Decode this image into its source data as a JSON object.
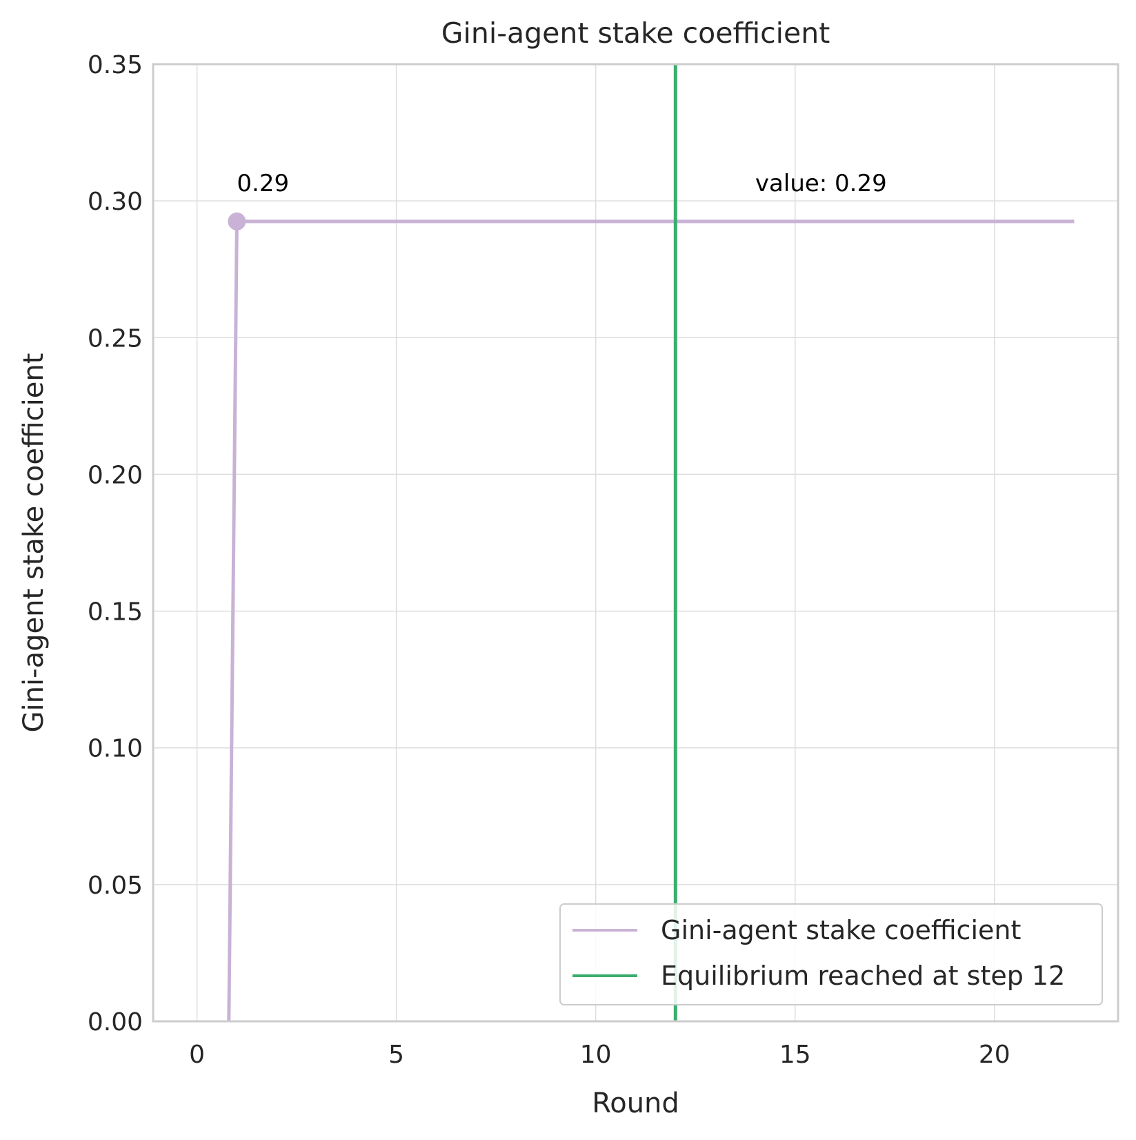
{
  "chart_data": {
    "type": "line",
    "title": "Gini-agent stake coefficient",
    "xlabel": "Round",
    "ylabel": "Gini-agent stake coefficient",
    "xlim": [
      -1.1,
      23.1
    ],
    "ylim": [
      0,
      0.35
    ],
    "xticks": [
      0,
      5,
      10,
      15,
      20
    ],
    "xtick_labels": [
      "0",
      "5",
      "10",
      "15",
      "20"
    ],
    "yticks": [
      0,
      0.05,
      0.1,
      0.15,
      0.2,
      0.25,
      0.3,
      0.35
    ],
    "ytick_labels": [
      "0.00",
      "0.05",
      "0.10",
      "0.15",
      "0.20",
      "0.25",
      "0.30",
      "0.35"
    ],
    "grid": true,
    "legend_position": "lower-right",
    "series": [
      {
        "name": "Gini-agent stake coefficient",
        "color": "#c9b2d6",
        "x": [
          0.8,
          1,
          2,
          3,
          4,
          5,
          6,
          7,
          8,
          9,
          10,
          11,
          12,
          13,
          14,
          15,
          16,
          17,
          18,
          19,
          20,
          21,
          22
        ],
        "y": [
          0.0,
          0.2925,
          0.2925,
          0.2925,
          0.2925,
          0.2925,
          0.2925,
          0.2925,
          0.2925,
          0.2925,
          0.2925,
          0.2925,
          0.2925,
          0.2925,
          0.2925,
          0.2925,
          0.2925,
          0.2925,
          0.2925,
          0.2925,
          0.2925,
          0.2925,
          0.2925
        ],
        "marker_at_x": 1
      }
    ],
    "vline": {
      "name": "Equilibrium reached at step 12",
      "x": 12,
      "color": "#3aae6e"
    },
    "annotations": [
      {
        "text": "0.29",
        "x": 1,
        "y": 0.2925
      },
      {
        "text": "value: 0.29",
        "x": 14,
        "y": 0.2925
      }
    ],
    "legend": [
      "Gini-agent stake coefficient",
      "Equilibrium reached at step 12"
    ]
  }
}
